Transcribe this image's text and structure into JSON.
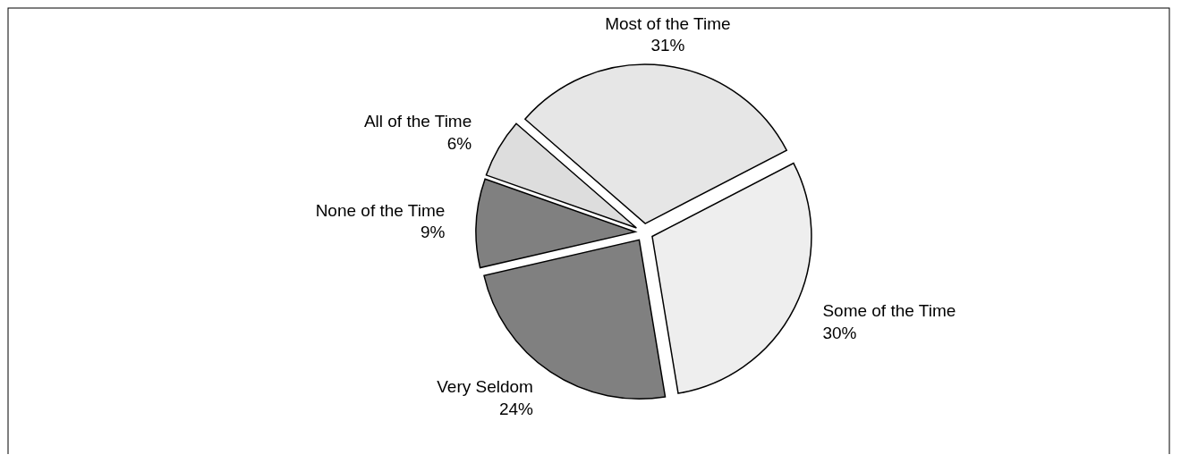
{
  "chart_data": {
    "type": "pie",
    "categories": [
      "Most of the Time",
      "Some of the Time",
      "Very Seldom",
      "None of the Time",
      "All of the Time"
    ],
    "values": [
      31,
      30,
      24,
      9,
      6
    ],
    "value_labels": [
      "31%",
      "30%",
      "24%",
      "9%",
      "6%"
    ],
    "colors": [
      "#e6e6e6",
      "#eeeeee",
      "#808080",
      "#808080",
      "#dddddd"
    ],
    "legend": false
  }
}
